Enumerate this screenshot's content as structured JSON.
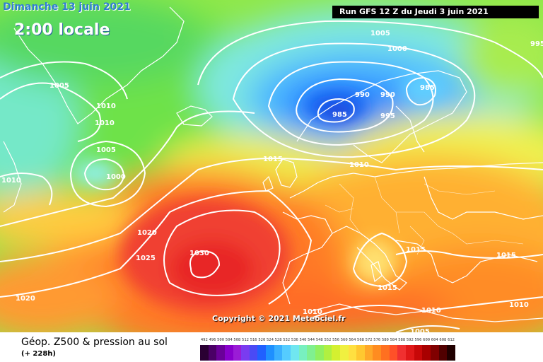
{
  "header": {
    "date": "Dimanche 13 juin 2021",
    "time": "2:00 locale",
    "run": "Run GFS 12 Z du Jeudi 3 juin 2021"
  },
  "copyright": "Copyright © 2021 Meteociel.fr",
  "footer": {
    "title": "Géop. Z500 & pression au sol",
    "subtitle": "(+ 228h)"
  },
  "legend": {
    "values": [
      "492",
      "496",
      "500",
      "504",
      "508",
      "512",
      "516",
      "520",
      "524",
      "528",
      "532",
      "536",
      "540",
      "544",
      "548",
      "552",
      "556",
      "560",
      "564",
      "568",
      "572",
      "576",
      "580",
      "584",
      "588",
      "592",
      "596",
      "600",
      "604",
      "608",
      "612"
    ],
    "colors": [
      "#2a0033",
      "#4a0066",
      "#6a0099",
      "#8800cc",
      "#9a1cd6",
      "#7a3cf0",
      "#4a4af5",
      "#2060ff",
      "#1e90ff",
      "#3ab0ff",
      "#55ccff",
      "#70e6f0",
      "#78f0c0",
      "#80f090",
      "#90f060",
      "#b0f040",
      "#d4f030",
      "#f0f040",
      "#ffe040",
      "#ffc830",
      "#ffa828",
      "#ff8c20",
      "#ff7020",
      "#ff5028",
      "#f03030",
      "#e01818",
      "#c80808",
      "#a80000",
      "#800000",
      "#500000",
      "#200000"
    ]
  },
  "isobars": [
    {
      "id": "l1005a",
      "text": "1005"
    },
    {
      "id": "l1000a",
      "text": "1000"
    },
    {
      "id": "l995a",
      "text": "995"
    },
    {
      "id": "l1005b",
      "text": "1005"
    },
    {
      "id": "l985a",
      "text": "985"
    },
    {
      "id": "l990a",
      "text": "990"
    },
    {
      "id": "l990b",
      "text": "990"
    },
    {
      "id": "l985b",
      "text": "985"
    },
    {
      "id": "l995b",
      "text": "995"
    },
    {
      "id": "l1010a",
      "text": "1010"
    },
    {
      "id": "l1010b",
      "text": "1010"
    },
    {
      "id": "l1005c",
      "text": "1005"
    },
    {
      "id": "l1000b",
      "text": "1000"
    },
    {
      "id": "l1010c",
      "text": "1010"
    },
    {
      "id": "l1015a",
      "text": "1015"
    },
    {
      "id": "l1010d",
      "text": "1010"
    },
    {
      "id": "l1020a",
      "text": "1020"
    },
    {
      "id": "l1025a",
      "text": "1025"
    },
    {
      "id": "l1030a",
      "text": "1030"
    },
    {
      "id": "l1015b",
      "text": "1015"
    },
    {
      "id": "l1015c",
      "text": "1015"
    },
    {
      "id": "l1015d",
      "text": "1015"
    },
    {
      "id": "l1020b",
      "text": "1020"
    },
    {
      "id": "l1010e",
      "text": "1010"
    },
    {
      "id": "l1010f",
      "text": "1010"
    },
    {
      "id": "l1010g",
      "text": "1010"
    },
    {
      "id": "l1005d",
      "text": "1005"
    }
  ]
}
